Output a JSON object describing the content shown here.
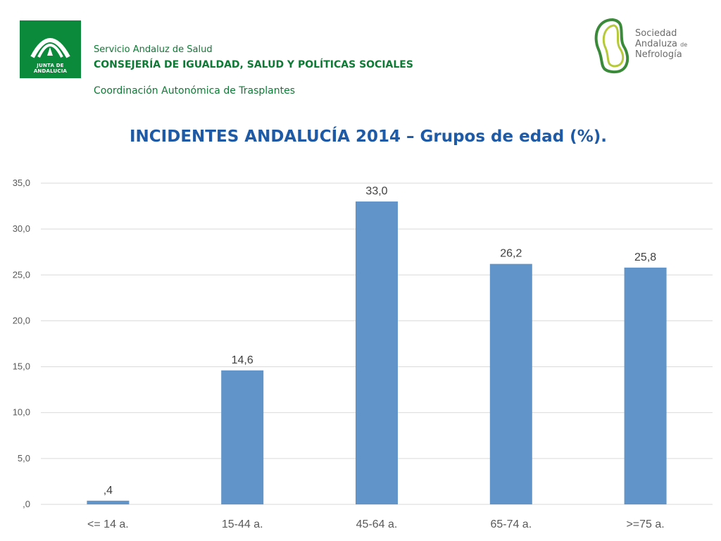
{
  "header": {
    "junta_logo_text": "JUNTA DE ANDALUCIA",
    "line1": "Servicio Andaluz de Salud",
    "line2": "CONSEJERÍA DE IGUALDAD, SALUD Y POLÍTICAS SOCIALES",
    "line3": "Coordinación Autonómica de Trasplantes",
    "society_line1": "Sociedad",
    "society_line2": "Andaluza",
    "society_de": "de",
    "society_line3": "Nefrología"
  },
  "colors": {
    "brand_green": "#0a8a3a",
    "title_blue": "#1f5aa6",
    "bar_blue": "#6195c9"
  },
  "chart_data": {
    "type": "bar",
    "title": "INCIDENTES ANDALUCÍA 2014 – Grupos de edad (%).",
    "categories": [
      "<= 14 a.",
      "15-44 a.",
      "45-64 a.",
      "65-74 a.",
      ">=75 a."
    ],
    "values": [
      0.4,
      14.6,
      33.0,
      26.2,
      25.8
    ],
    "value_labels": [
      ",4",
      "14,6",
      "33,0",
      "26,2",
      "25,8"
    ],
    "yticks": [
      ",0",
      "5,0",
      "10,0",
      "15,0",
      "20,0",
      "25,0",
      "30,0",
      "35,0"
    ],
    "ylim": [
      0,
      35
    ],
    "grid": true,
    "legend": "none",
    "xlabel": "",
    "ylabel": ""
  }
}
